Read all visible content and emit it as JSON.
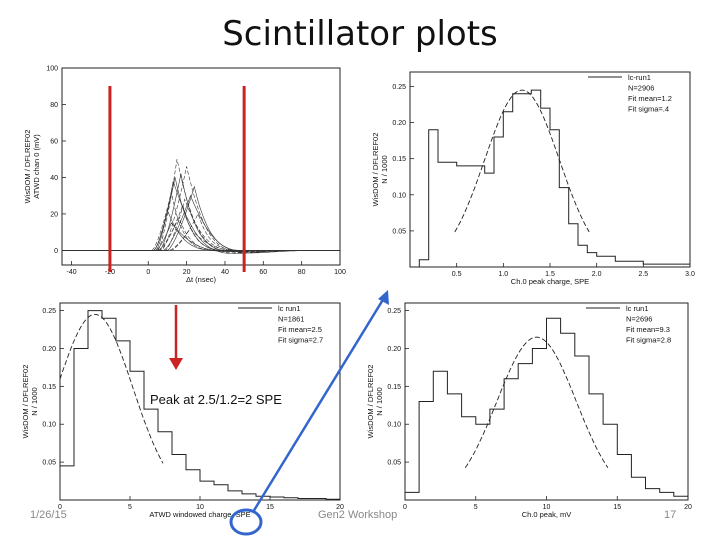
{
  "slide": {
    "title": "Scintillator plots",
    "annotation": "Peak at 2.5/1.2=2 SPE",
    "footer_date": "1/26/15",
    "footer_center": "Gen2 Workshop",
    "page_number": "17",
    "marker_color": "#cc2222",
    "arrow_color": "#3366cc"
  },
  "chart_data": [
    {
      "type": "line",
      "xlabel": "Δt (nsec)",
      "ylabel": "WisDOM / DFLREF02\nATWD chan 0 (mV)",
      "xlim": [
        -45,
        100
      ],
      "ylim": [
        -8,
        100
      ],
      "xticks": [
        -40,
        -20,
        0,
        20,
        40,
        60,
        80,
        100
      ],
      "yticks": [
        0,
        20,
        40,
        60,
        80,
        100
      ],
      "markers_x": [
        -20,
        50
      ],
      "waveform_peaks": [
        {
          "t0": 2,
          "peak_t": 12,
          "amp": 32
        },
        {
          "t0": 3,
          "peak_t": 14,
          "amp": 40
        },
        {
          "t0": 5,
          "peak_t": 15,
          "amp": 50
        },
        {
          "t0": 4,
          "peak_t": 13,
          "amp": 38
        },
        {
          "t0": 6,
          "peak_t": 18,
          "amp": 25
        },
        {
          "t0": 3,
          "peak_t": 10,
          "amp": 22
        },
        {
          "t0": 7,
          "peak_t": 20,
          "amp": 46
        },
        {
          "t0": 8,
          "peak_t": 22,
          "amp": 30
        },
        {
          "t0": 5,
          "peak_t": 16,
          "amp": 18
        },
        {
          "t0": 10,
          "peak_t": 24,
          "amp": 35
        },
        {
          "t0": 9,
          "peak_t": 19,
          "amp": 28
        },
        {
          "t0": 4,
          "peak_t": 12,
          "amp": 15
        },
        {
          "t0": 12,
          "peak_t": 26,
          "amp": 20
        },
        {
          "t0": 6,
          "peak_t": 17,
          "amp": 42
        },
        {
          "t0": 11,
          "peak_t": 22,
          "amp": 12
        }
      ]
    },
    {
      "type": "bar",
      "xlabel": "Ch.0 peak charge, SPE",
      "ylabel": "WisDOM / DFLREF02\nN / 1000",
      "xlim": [
        0,
        3.0
      ],
      "ylim": [
        0,
        0.27
      ],
      "xticks": [
        0.5,
        1.0,
        1.5,
        2.0,
        2.5,
        3.0
      ],
      "yticks": [
        0.05,
        0.1,
        0.15,
        0.2,
        0.25
      ],
      "legend": [
        "lc-run1",
        "N=2906",
        "Fit mean=1.2",
        "Fit sigma=.4"
      ],
      "bin_edges": [
        0.1,
        0.2,
        0.3,
        0.5,
        0.6,
        0.8,
        0.9,
        1.0,
        1.1,
        1.2,
        1.3,
        1.4,
        1.5,
        1.6,
        1.7,
        1.8,
        1.9,
        2.0,
        2.2,
        2.5,
        3.0
      ],
      "counts": [
        0.01,
        0.19,
        0.145,
        0.14,
        0.14,
        0.13,
        0.18,
        0.215,
        0.24,
        0.24,
        0.245,
        0.22,
        0.19,
        0.11,
        0.06,
        0.03,
        0.02,
        0.015,
        0.008,
        0.004
      ],
      "fit": {
        "mean": 1.2,
        "sigma": 0.4,
        "amp": 0.245
      }
    },
    {
      "type": "bar",
      "xlabel": "ATWD windowed charge, SPE",
      "ylabel": "WisDOM / DFLREF02\nN / 1000",
      "xlim": [
        0,
        20
      ],
      "ylim": [
        0,
        0.26
      ],
      "xticks": [
        0,
        5,
        10,
        15,
        20
      ],
      "yticks": [
        0.05,
        0.1,
        0.15,
        0.2,
        0.25
      ],
      "legend": [
        "lc run1",
        "N=1861",
        "Fit mean=2.5",
        "Fit sigma=2.7"
      ],
      "bin_edges": [
        0,
        1,
        2,
        3,
        4,
        5,
        6,
        7,
        8,
        9,
        10,
        11,
        12,
        13,
        14,
        15,
        16,
        17,
        18,
        19,
        20
      ],
      "counts": [
        0.045,
        0.2,
        0.25,
        0.24,
        0.21,
        0.17,
        0.12,
        0.09,
        0.06,
        0.04,
        0.025,
        0.02,
        0.012,
        0.008,
        0.005,
        0.004,
        0.003,
        0.002,
        0.002,
        0.001
      ],
      "fit": {
        "mean": 2.5,
        "sigma": 2.7,
        "amp": 0.245
      }
    },
    {
      "type": "bar",
      "xlabel": "Ch.0 peak, mV",
      "ylabel": "WisDOM / DFLREF02\nN / 1000",
      "xlim": [
        0,
        20
      ],
      "ylim": [
        0,
        0.26
      ],
      "xticks": [
        0,
        5,
        10,
        15,
        20
      ],
      "yticks": [
        0.05,
        0.1,
        0.15,
        0.2,
        0.25
      ],
      "legend": [
        "lc run1",
        "N=2696",
        "Fit mean=9.3",
        "Fit sigma=2.8"
      ],
      "bin_edges": [
        0,
        1,
        2,
        3,
        4,
        5,
        6,
        7,
        8,
        9,
        10,
        11,
        12,
        13,
        14,
        15,
        16,
        17,
        18,
        19,
        20
      ],
      "counts": [
        0.01,
        0.13,
        0.17,
        0.14,
        0.11,
        0.1,
        0.12,
        0.16,
        0.18,
        0.2,
        0.24,
        0.22,
        0.19,
        0.14,
        0.1,
        0.06,
        0.03,
        0.015,
        0.01,
        0.005
      ],
      "fit": {
        "mean": 9.3,
        "sigma": 2.8,
        "amp": 0.215
      }
    }
  ]
}
